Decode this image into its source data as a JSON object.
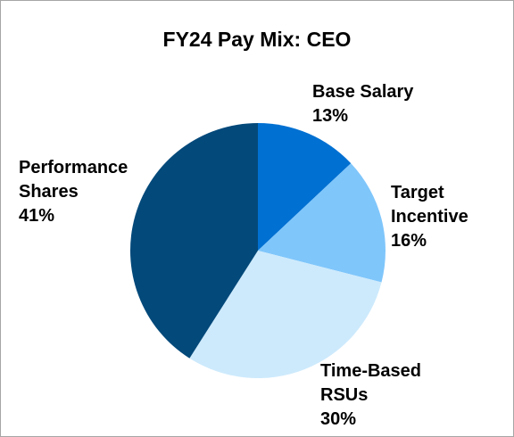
{
  "chart_data": {
    "type": "pie",
    "title": "FY24 Pay Mix: CEO",
    "slices": [
      {
        "key": "base",
        "label_lines": [
          "Base Salary"
        ],
        "value": 13,
        "value_label": "13%",
        "color": "#0070d2"
      },
      {
        "key": "target",
        "label_lines": [
          "Target",
          "Incentive"
        ],
        "value": 16,
        "value_label": "16%",
        "color": "#7fc6fb"
      },
      {
        "key": "rsu",
        "label_lines": [
          "Time-Based",
          "RSUs"
        ],
        "value": 30,
        "value_label": "30%",
        "color": "#cdeafc"
      },
      {
        "key": "perf",
        "label_lines": [
          "Performance",
          "Shares"
        ],
        "value": 41,
        "value_label": "41%",
        "color": "#03497a"
      }
    ],
    "start_angle": "12 o'clock",
    "direction": "clockwise",
    "legend": "none"
  }
}
